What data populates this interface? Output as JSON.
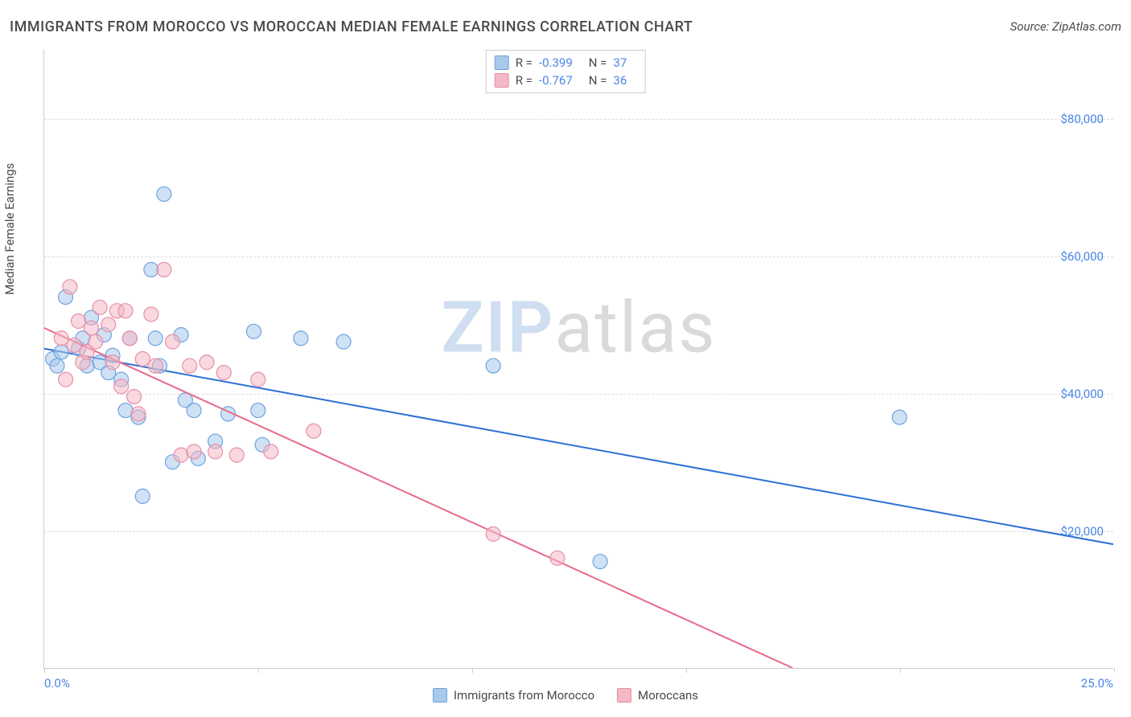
{
  "title": "IMMIGRANTS FROM MOROCCO VS MOROCCAN MEDIAN FEMALE EARNINGS CORRELATION CHART",
  "source": "Source: ZipAtlas.com",
  "y_label": "Median Female Earnings",
  "watermark": {
    "zip": "ZIP",
    "atlas": "atlas"
  },
  "chart": {
    "type": "scatter",
    "xlim": [
      0,
      25
    ],
    "ylim": [
      0,
      90000
    ],
    "x_ticks": [
      {
        "value": 0,
        "label": "0.0%"
      },
      {
        "value": 5,
        "label": ""
      },
      {
        "value": 10,
        "label": ""
      },
      {
        "value": 15,
        "label": ""
      },
      {
        "value": 20,
        "label": ""
      },
      {
        "value": 25,
        "label": "25.0%"
      }
    ],
    "y_gridlines": [
      20000,
      40000,
      60000,
      80000
    ],
    "y_tick_labels": {
      "20000": "$20,000",
      "40000": "$40,000",
      "60000": "$60,000",
      "80000": "$80,000"
    },
    "background_color": "#ffffff",
    "grid_color": "#dddddd",
    "axis_color": "#cccccc",
    "tick_label_color": "#4a86e8",
    "text_color": "#4a4a4a",
    "marker_radius": 9,
    "marker_opacity": 0.55,
    "line_width": 2,
    "series": [
      {
        "name": "Immigrants from Morocco",
        "fill_color": "#a8c8ec",
        "stroke_color": "#6fa3dd",
        "line_color": "#2a6fd6",
        "r_value": "-0.399",
        "n_value": "37",
        "trend": {
          "x1": 0,
          "y1": 46500,
          "x2": 25,
          "y2": 18000
        },
        "points": [
          [
            0.2,
            45000
          ],
          [
            0.3,
            44000
          ],
          [
            0.4,
            46000
          ],
          [
            0.5,
            54000
          ],
          [
            0.8,
            46500
          ],
          [
            0.9,
            48000
          ],
          [
            1.0,
            44000
          ],
          [
            1.1,
            51000
          ],
          [
            1.3,
            44500
          ],
          [
            1.4,
            48500
          ],
          [
            1.5,
            43000
          ],
          [
            1.6,
            45500
          ],
          [
            1.8,
            42000
          ],
          [
            1.9,
            37500
          ],
          [
            2.0,
            48000
          ],
          [
            2.2,
            36500
          ],
          [
            2.3,
            25000
          ],
          [
            2.5,
            58000
          ],
          [
            2.6,
            48000
          ],
          [
            2.7,
            44000
          ],
          [
            2.8,
            69000
          ],
          [
            3.0,
            30000
          ],
          [
            3.2,
            48500
          ],
          [
            3.3,
            39000
          ],
          [
            3.5,
            37500
          ],
          [
            3.6,
            30500
          ],
          [
            4.0,
            33000
          ],
          [
            4.3,
            37000
          ],
          [
            4.9,
            49000
          ],
          [
            5.0,
            37500
          ],
          [
            5.1,
            32500
          ],
          [
            6.0,
            48000
          ],
          [
            7.0,
            47500
          ],
          [
            10.5,
            44000
          ],
          [
            13.0,
            15500
          ],
          [
            20.0,
            36500
          ]
        ]
      },
      {
        "name": "Moroccans",
        "fill_color": "#f4b8c6",
        "stroke_color": "#e78fa5",
        "line_color": "#e86b8a",
        "r_value": "-0.767",
        "n_value": "36",
        "trend": {
          "x1": 0,
          "y1": 49500,
          "x2": 17.5,
          "y2": 0
        },
        "dashed_extension": {
          "x1": 14.3,
          "y1": 9000,
          "x2": 17.5,
          "y2": 0
        },
        "points": [
          [
            0.4,
            48000
          ],
          [
            0.5,
            42000
          ],
          [
            0.6,
            55500
          ],
          [
            0.7,
            47000
          ],
          [
            0.8,
            50500
          ],
          [
            0.9,
            44500
          ],
          [
            1.0,
            46000
          ],
          [
            1.1,
            49500
          ],
          [
            1.2,
            47500
          ],
          [
            1.3,
            52500
          ],
          [
            1.5,
            50000
          ],
          [
            1.6,
            44500
          ],
          [
            1.7,
            52000
          ],
          [
            1.8,
            41000
          ],
          [
            1.9,
            52000
          ],
          [
            2.0,
            48000
          ],
          [
            2.1,
            39500
          ],
          [
            2.2,
            37000
          ],
          [
            2.3,
            45000
          ],
          [
            2.5,
            51500
          ],
          [
            2.6,
            44000
          ],
          [
            2.8,
            58000
          ],
          [
            3.0,
            47500
          ],
          [
            3.2,
            31000
          ],
          [
            3.4,
            44000
          ],
          [
            3.5,
            31500
          ],
          [
            3.8,
            44500
          ],
          [
            4.0,
            31500
          ],
          [
            4.2,
            43000
          ],
          [
            4.5,
            31000
          ],
          [
            5.0,
            42000
          ],
          [
            5.3,
            31500
          ],
          [
            6.3,
            34500
          ],
          [
            10.5,
            19500
          ],
          [
            12.0,
            16000
          ]
        ]
      }
    ]
  },
  "legend": {
    "series1_label": "Immigrants from Morocco",
    "series2_label": "Moroccans"
  }
}
